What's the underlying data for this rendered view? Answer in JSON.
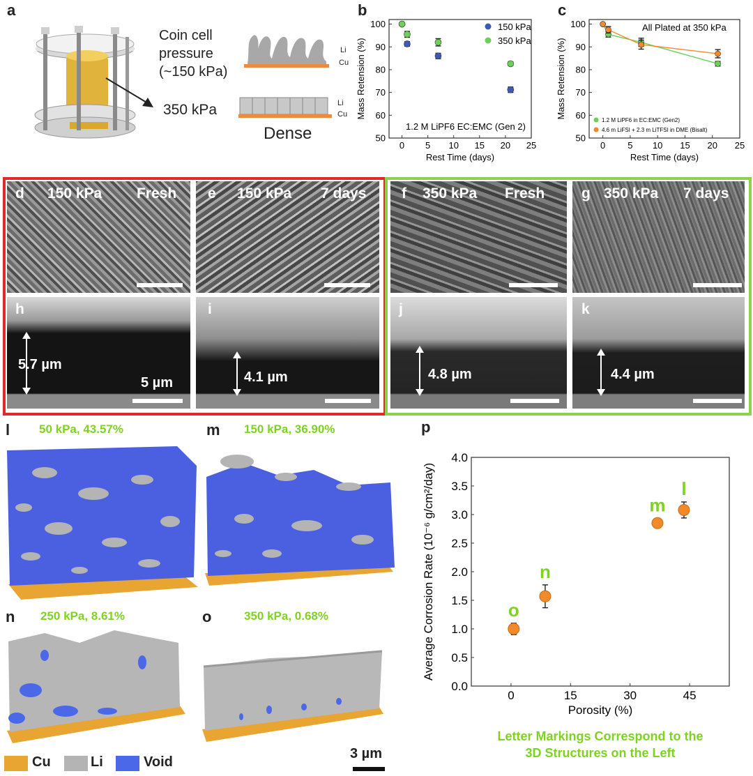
{
  "colors": {
    "red_frame": "#e02a2a",
    "green_frame": "#8fd14f",
    "green_text": "#7ed321",
    "cu": "#e8a531",
    "li": "#b4b4b4",
    "void": "#4a68e8",
    "p150": "#3d5ab7",
    "p350": "#6bd15a",
    "orange": "#f28a2a"
  },
  "panel_a": {
    "letter": "a",
    "coin_label": "Coin cell\npressure\n(~150 kPa)",
    "dense_pressure": "350 kPa",
    "li_label": "Li",
    "cu_label": "Cu",
    "dense_label": "Dense"
  },
  "panels_sem": {
    "d": {
      "letter": "d",
      "pressure": "150 kPa",
      "time": "Fresh"
    },
    "e": {
      "letter": "e",
      "pressure": "150 kPa",
      "time": "7 days"
    },
    "f": {
      "letter": "f",
      "pressure": "350 kPa",
      "time": "Fresh"
    },
    "g": {
      "letter": "g",
      "pressure": "350 kPa",
      "time": "7 days"
    },
    "h": {
      "letter": "h",
      "thickness": "5.7 µm",
      "scale": "5 µm"
    },
    "i": {
      "letter": "i",
      "thickness": "4.1 µm"
    },
    "j": {
      "letter": "j",
      "thickness": "4.8 µm"
    },
    "k": {
      "letter": "k",
      "thickness": "4.4 µm"
    }
  },
  "renders": {
    "l": {
      "letter": "l",
      "caption": "50 kPa, 43.57%"
    },
    "m": {
      "letter": "m",
      "caption": "150 kPa, 36.90%"
    },
    "n": {
      "letter": "n",
      "caption": "250 kPa, 8.61%"
    },
    "o": {
      "letter": "o",
      "caption": "350 kPa, 0.68%"
    }
  },
  "legend_3d": {
    "cu": "Cu",
    "li": "Li",
    "void": "Void",
    "scale": "3 µm"
  },
  "chart_data": [
    {
      "id": "b",
      "type": "scatter",
      "xlabel": "Rest Time (days)",
      "ylabel": "Mass Retension (%)",
      "xlim": [
        -2.5,
        25
      ],
      "ylim": [
        50,
        102
      ],
      "xticks": [
        0,
        5,
        10,
        15,
        20,
        25
      ],
      "yticks": [
        50,
        60,
        70,
        80,
        90,
        100
      ],
      "annotation": "1.2 M LiPF6 EC:EMC (Gen 2)",
      "series": [
        {
          "name": "150 kPa",
          "color": "#3d5ab7",
          "x": [
            0,
            1,
            7,
            21
          ],
          "y": [
            100,
            91.3,
            86,
            71.2
          ],
          "err": [
            0,
            1.0,
            1.2,
            1.2
          ]
        },
        {
          "name": "350 kPa",
          "color": "#6bd15a",
          "x": [
            0,
            1,
            7,
            21
          ],
          "y": [
            100,
            95.5,
            92,
            82.6
          ],
          "err": [
            0,
            1.3,
            1.6,
            0.8
          ]
        }
      ]
    },
    {
      "id": "c",
      "type": "line",
      "title": "All Plated at 350 kPa",
      "xlabel": "Rest Time (days)",
      "ylabel": "Mass Retension (%)",
      "xlim": [
        -2.5,
        25
      ],
      "ylim": [
        50,
        102
      ],
      "xticks": [
        0,
        5,
        10,
        15,
        20,
        25
      ],
      "yticks": [
        50,
        60,
        70,
        80,
        90,
        100
      ],
      "series": [
        {
          "name": "1.2 M LiPF6 in EC:EMC (Gen2)",
          "color": "#6bd15a",
          "x": [
            0,
            1,
            7,
            21
          ],
          "y": [
            100,
            95.5,
            92,
            82.6
          ],
          "err": [
            0,
            1.2,
            1.8,
            1.0
          ]
        },
        {
          "name": "4.6 m LiFSI + 2.3 m LiTFSI in DME (Bisalt)",
          "color": "#f28a2a",
          "x": [
            0,
            1,
            7,
            21
          ],
          "y": [
            100,
            97.5,
            91,
            87
          ],
          "err": [
            0,
            1.4,
            2.0,
            1.8
          ]
        }
      ]
    },
    {
      "id": "p",
      "type": "scatter",
      "xlabel": "Porosity (%)",
      "ylabel": "Average Corrosion Rate (10⁻⁶ g/cm²/day)",
      "xlim": [
        -10,
        55
      ],
      "ylim": [
        0,
        4
      ],
      "xticks": [
        0,
        15,
        30,
        45
      ],
      "yticks": [
        0.0,
        0.5,
        1.0,
        1.5,
        2.0,
        2.5,
        3.0,
        3.5,
        4.0
      ],
      "caption": "Letter Markings Correspond to the\n3D Structures on the Left",
      "points": [
        {
          "label": "o",
          "x": 0.68,
          "y": 1.0,
          "err": 0.1
        },
        {
          "label": "n",
          "x": 8.61,
          "y": 1.57,
          "err": 0.2
        },
        {
          "label": "m",
          "x": 36.9,
          "y": 2.85,
          "err": 0.08
        },
        {
          "label": "l",
          "x": 43.57,
          "y": 3.08,
          "err": 0.14
        }
      ]
    }
  ]
}
